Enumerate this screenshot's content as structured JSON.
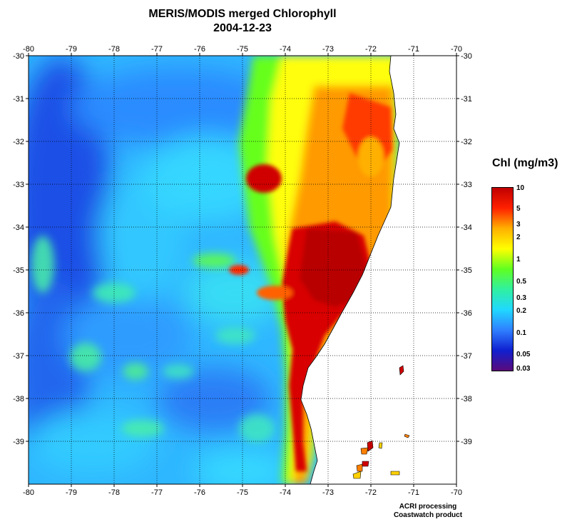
{
  "title": {
    "line1": "MERIS/MODIS merged Chlorophyll",
    "line2": "2004-12-23"
  },
  "map": {
    "lon_range": [
      -80,
      -70
    ],
    "lat_range": [
      -40,
      -30
    ],
    "grid": "dotted",
    "lon_ticks": [
      "-80",
      "-79",
      "-78",
      "-77",
      "-76",
      "-75",
      "-74",
      "-73",
      "-72",
      "-71",
      "-70"
    ],
    "lat_ticks": [
      "-30",
      "-31",
      "-32",
      "-33",
      "-34",
      "-35",
      "-36",
      "-37",
      "-38",
      "-39"
    ]
  },
  "colorbar": {
    "label": "Chl (mg/m3)",
    "ticks": [
      {
        "text": "10",
        "value": 10
      },
      {
        "text": "5",
        "value": 5
      },
      {
        "text": "3",
        "value": 3
      },
      {
        "text": "2",
        "value": 2
      },
      {
        "text": "1",
        "value": 1
      },
      {
        "text": "0.5",
        "value": 0.5
      },
      {
        "text": "0.3",
        "value": 0.3
      },
      {
        "text": "0.2",
        "value": 0.2
      },
      {
        "text": "0.1",
        "value": 0.1
      },
      {
        "text": "0.05",
        "value": 0.05
      },
      {
        "text": "0.03",
        "value": 0.03
      }
    ],
    "colors": [
      "#5a0a7a",
      "#1020d0",
      "#2f80ff",
      "#20d8ff",
      "#30f0a0",
      "#60ff20",
      "#ffff00",
      "#ffb000",
      "#ff2000",
      "#c00000"
    ]
  },
  "credit": {
    "line1": "ACRI processing",
    "line2": "Coastwatch product"
  }
}
